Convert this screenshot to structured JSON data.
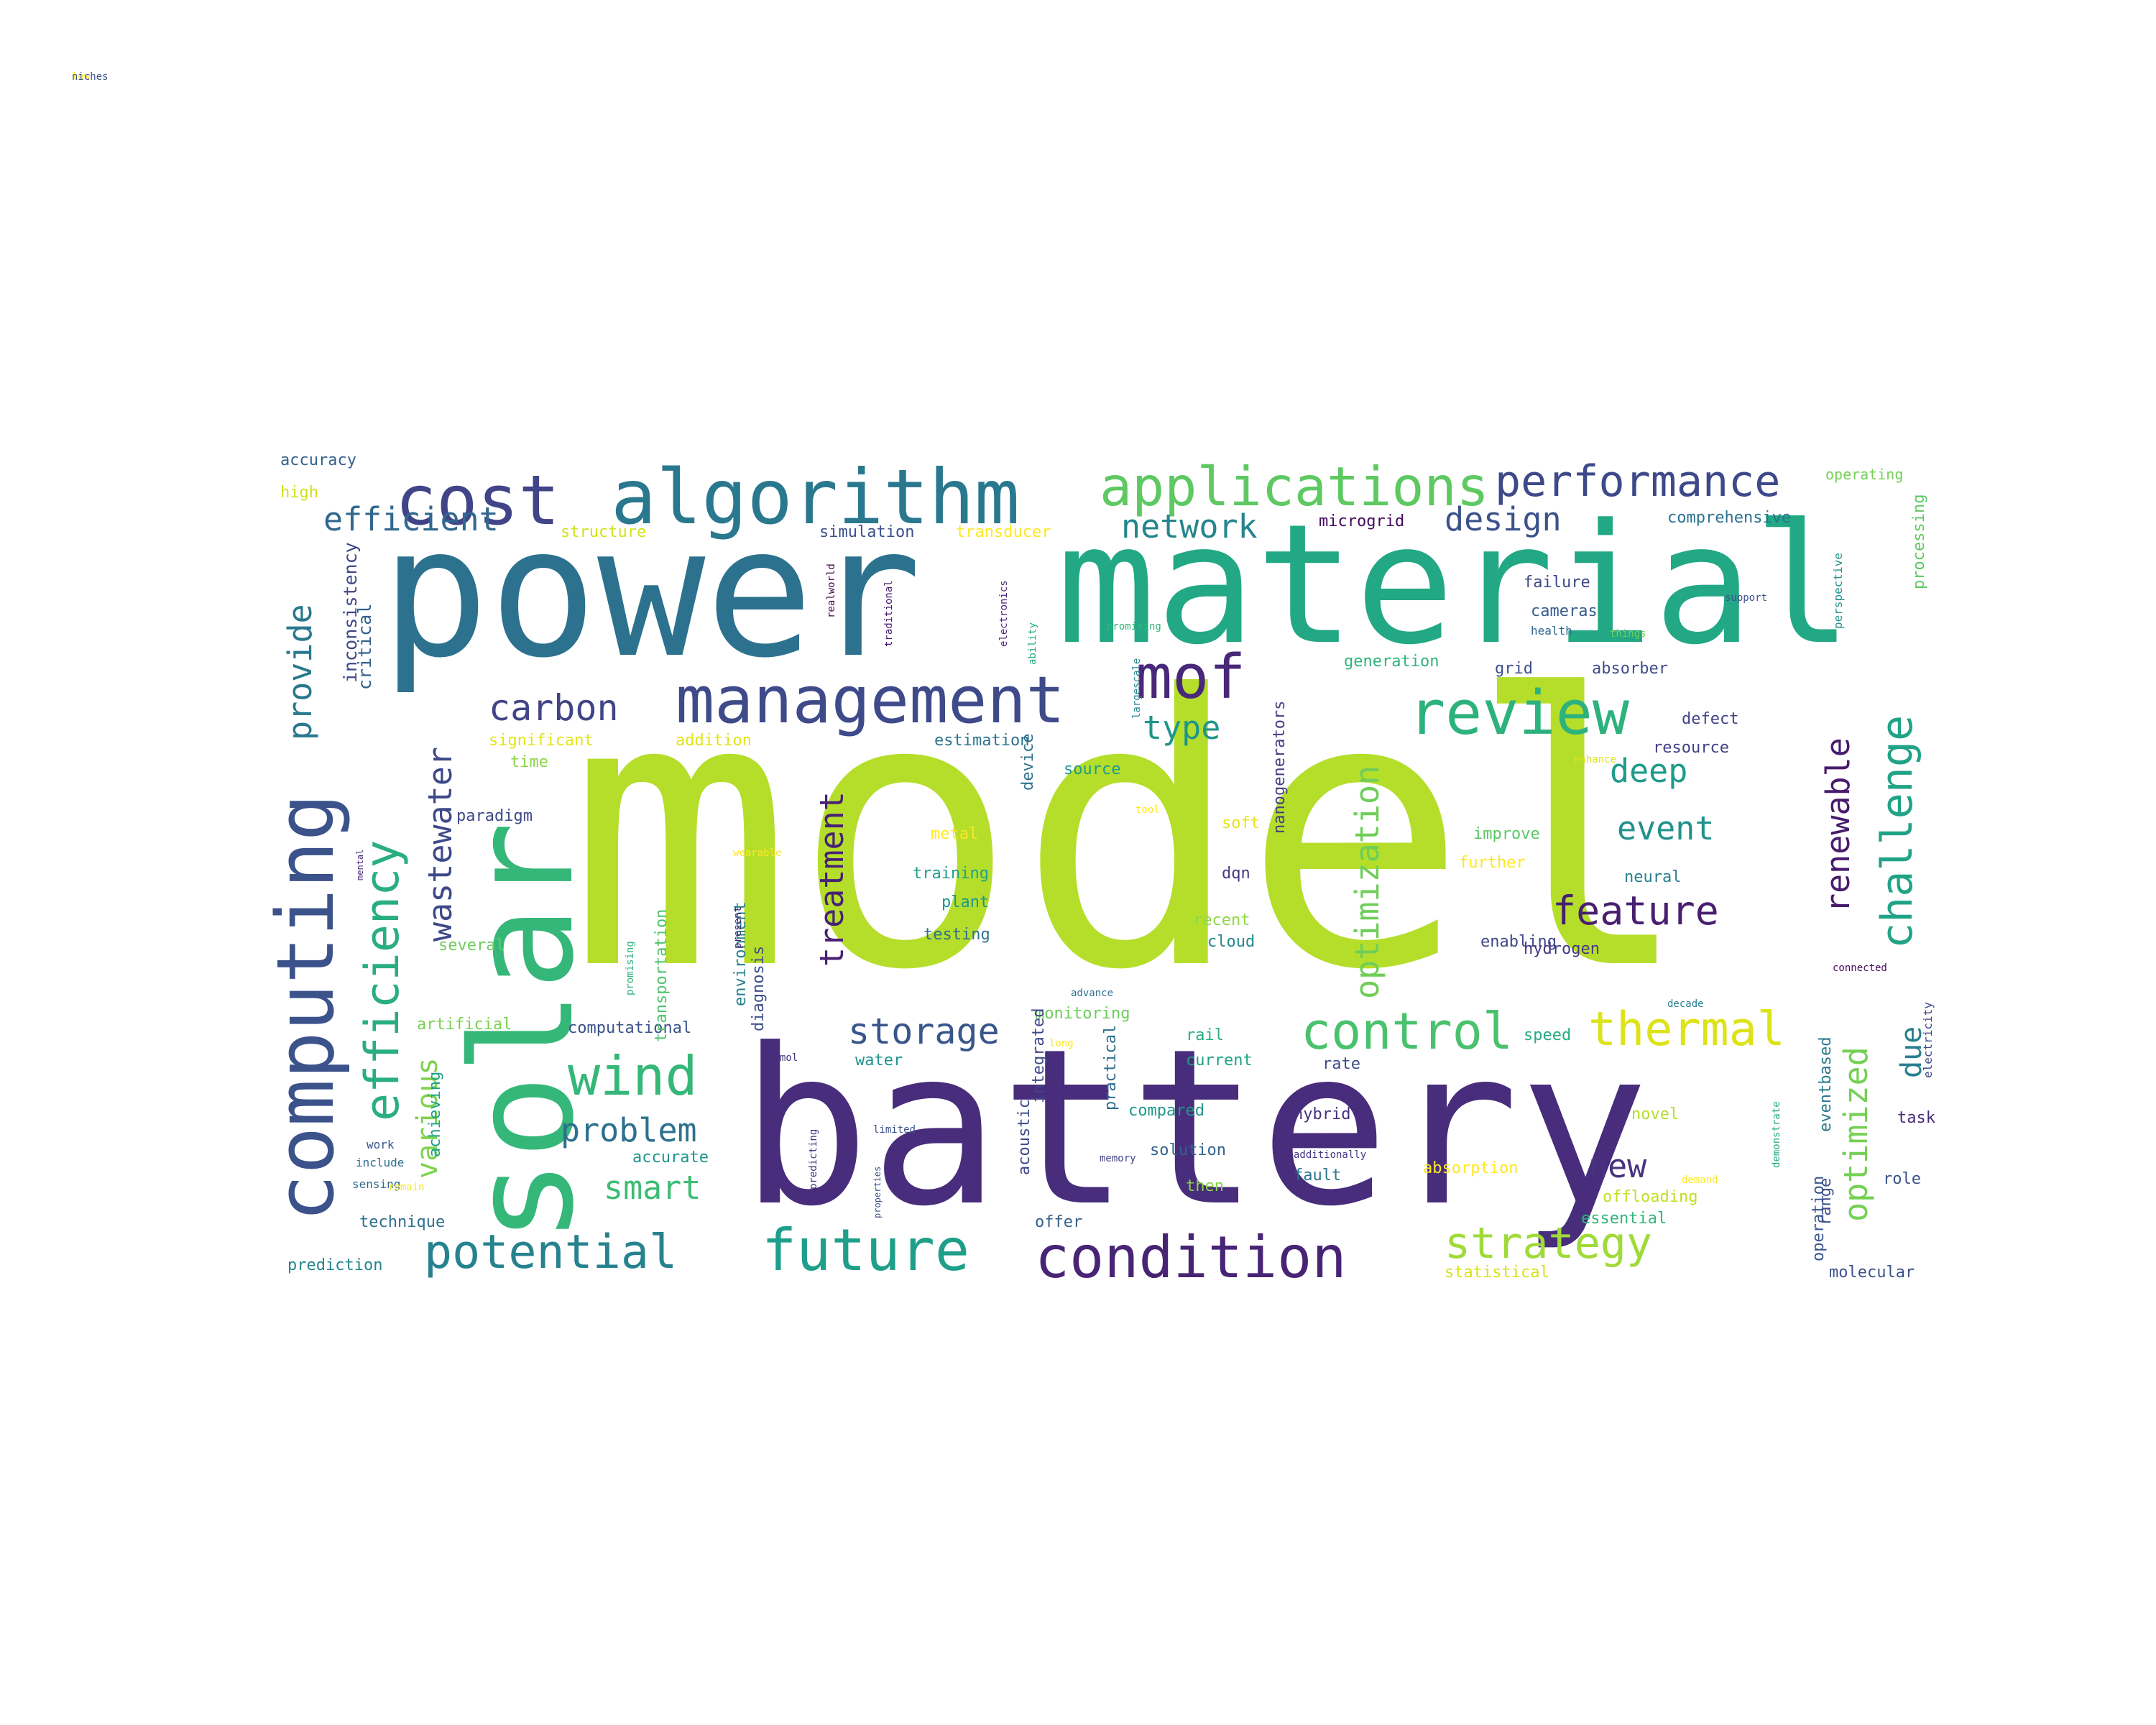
{
  "words": [
    {
      "text": "model",
      "color": "#b5de2b",
      "rot": 0
    },
    {
      "text": "battery",
      "color": "#472d7b",
      "rot": 0
    },
    {
      "text": "power",
      "color": "#2c728e",
      "rot": 0
    },
    {
      "text": "material",
      "color": "#22a884",
      "rot": 0
    },
    {
      "text": "solar",
      "color": "#35b779",
      "rot": -90
    },
    {
      "text": "computing",
      "color": "#3b528b",
      "rot": -90
    },
    {
      "text": "algorithm",
      "color": "#2a788e",
      "rot": 0
    },
    {
      "text": "cost",
      "color": "#414487",
      "rot": 0
    },
    {
      "text": "applications",
      "color": "#5ec962",
      "rot": 0
    },
    {
      "text": "performance",
      "color": "#3e4989",
      "rot": 0
    },
    {
      "text": "management",
      "color": "#3e4a89",
      "rot": 0
    },
    {
      "text": "mof",
      "color": "#482878",
      "rot": 0
    },
    {
      "text": "review",
      "color": "#2db27d",
      "rot": 0
    },
    {
      "text": "condition",
      "color": "#482475",
      "rot": 0
    },
    {
      "text": "future",
      "color": "#1f9e89",
      "rot": 0
    },
    {
      "text": "potential",
      "color": "#26828e",
      "rot": 0
    },
    {
      "text": "control",
      "color": "#4ac16d",
      "rot": 0
    },
    {
      "text": "thermal",
      "color": "#dde318",
      "rot": 0
    },
    {
      "text": "wind",
      "color": "#35b779",
      "rot": 0
    },
    {
      "text": "efficiency",
      "color": "#29af7f",
      "rot": -90
    },
    {
      "text": "efficient",
      "color": "#31688e",
      "rot": 0
    },
    {
      "text": "provide",
      "color": "#2a788e",
      "rot": -90
    },
    {
      "text": "carbon",
      "color": "#414487",
      "rot": 0
    },
    {
      "text": "challenge",
      "color": "#20a386",
      "rot": -90
    },
    {
      "text": "strategy",
      "color": "#a0da39",
      "rot": 0
    },
    {
      "text": "feature",
      "color": "#481f70",
      "rot": 0
    },
    {
      "text": "storage",
      "color": "#39568c",
      "rot": 0
    },
    {
      "text": "design",
      "color": "#3b528b",
      "rot": 0
    },
    {
      "text": "network",
      "color": "#25858e",
      "rot": 0
    },
    {
      "text": "wastewater",
      "color": "#3e4989",
      "rot": -90
    },
    {
      "text": "optimization",
      "color": "#6ece58",
      "rot": -90
    },
    {
      "text": "treatment",
      "color": "#482173",
      "rot": -90
    },
    {
      "text": "renewable",
      "color": "#481b6d",
      "rot": -90
    },
    {
      "text": "optimized",
      "color": "#75d054",
      "rot": -90
    },
    {
      "text": "deep",
      "color": "#1e9b8a",
      "rot": 0
    },
    {
      "text": "event",
      "color": "#21918c",
      "rot": 0
    },
    {
      "text": "type",
      "color": "#1f968b",
      "rot": 0
    },
    {
      "text": "problem",
      "color": "#2d708e",
      "rot": 0
    },
    {
      "text": "smart",
      "color": "#3dbc74",
      "rot": 0
    },
    {
      "text": "new",
      "color": "#46327e",
      "rot": 0
    },
    {
      "text": "due",
      "color": "#277f8e",
      "rot": -90
    },
    {
      "text": "various",
      "color": "#7fd34e",
      "rot": -90
    },
    {
      "text": "inconsistency",
      "color": "#3f4788",
      "rot": -90
    },
    {
      "text": "critical",
      "color": "#33638d",
      "rot": -90
    },
    {
      "text": "accuracy",
      "color": "#34618d",
      "rot": 0
    },
    {
      "text": "high",
      "color": "#d0e11c",
      "rot": 0
    },
    {
      "text": "structure",
      "color": "#d2e21b",
      "rot": 0
    },
    {
      "text": "simulation",
      "color": "#3c508b",
      "rot": 0
    },
    {
      "text": "transducer",
      "color": "#fde725",
      "rot": 0
    },
    {
      "text": "microgrid",
      "color": "#46085c",
      "rot": 0
    },
    {
      "text": "comprehensive",
      "color": "#2c728e",
      "rot": 0
    },
    {
      "text": "operating",
      "color": "#73d056",
      "rot": 0
    },
    {
      "text": "failure",
      "color": "#3f4889",
      "rot": 0
    },
    {
      "text": "cameras",
      "color": "#365c8d",
      "rot": 0
    },
    {
      "text": "health",
      "color": "#31678e",
      "rot": 0
    },
    {
      "text": "grid",
      "color": "#3b518b",
      "rot": 0
    },
    {
      "text": "absorber",
      "color": "#3e4c8a",
      "rot": 0
    },
    {
      "text": "generation",
      "color": "#2fb47c",
      "rot": 0
    },
    {
      "text": "significant",
      "color": "#e5e419",
      "rot": 0
    },
    {
      "text": "addition",
      "color": "#e2e418",
      "rot": 0
    },
    {
      "text": "estimation",
      "color": "#2c738e",
      "rot": 0
    },
    {
      "text": "defect",
      "color": "#424186",
      "rot": 0
    },
    {
      "text": "resource",
      "color": "#433e85",
      "rot": 0
    },
    {
      "text": "time",
      "color": "#8bd646",
      "rot": 0
    },
    {
      "text": "source",
      "color": "#1f998a",
      "rot": 0
    },
    {
      "text": "paradigm",
      "color": "#3f4889",
      "rot": 0
    },
    {
      "text": "metal",
      "color": "#fde725",
      "rot": 0
    },
    {
      "text": "soft",
      "color": "#e7e419",
      "rot": 0
    },
    {
      "text": "improve",
      "color": "#5ac864",
      "rot": 0
    },
    {
      "text": "training",
      "color": "#1fa187",
      "rot": 0
    },
    {
      "text": "plant",
      "color": "#1f968b",
      "rot": 0
    },
    {
      "text": "testing",
      "color": "#2c718e",
      "rot": 0
    },
    {
      "text": "dqn",
      "color": "#443983",
      "rot": 0
    },
    {
      "text": "recent",
      "color": "#90d743",
      "rot": 0
    },
    {
      "text": "cloud",
      "color": "#23888e",
      "rot": 0
    },
    {
      "text": "neural",
      "color": "#27808e",
      "rot": 0
    },
    {
      "text": "further",
      "color": "#fde725",
      "rot": 0
    },
    {
      "text": "enabling",
      "color": "#3f4889",
      "rot": 0
    },
    {
      "text": "hydrogen",
      "color": "#453882",
      "rot": 0
    },
    {
      "text": "several",
      "color": "#6ccd5a",
      "rot": 0
    },
    {
      "text": "artificial",
      "color": "#7ad151",
      "rot": 0
    },
    {
      "text": "computational",
      "color": "#3b528b",
      "rot": 0
    },
    {
      "text": "monitoring",
      "color": "#6ccd5a",
      "rot": 0
    },
    {
      "text": "rate",
      "color": "#3d4d8a",
      "rot": 0
    },
    {
      "text": "water",
      "color": "#20928c",
      "rot": 0
    },
    {
      "text": "rail",
      "color": "#27ad81",
      "rot": 0
    },
    {
      "text": "current",
      "color": "#1fa188",
      "rot": 0
    },
    {
      "text": "speed",
      "color": "#25ab82",
      "rot": 0
    },
    {
      "text": "compared",
      "color": "#1f988b",
      "rot": 0
    },
    {
      "text": "hybrid",
      "color": "#46307e",
      "rot": 0
    },
    {
      "text": "solution",
      "color": "#33628d",
      "rot": 0
    },
    {
      "text": "fault",
      "color": "#2a768e",
      "rot": 0
    },
    {
      "text": "then",
      "color": "#86d549",
      "rot": 0
    },
    {
      "text": "novel",
      "color": "#b8de29",
      "rot": 0
    },
    {
      "text": "absorption",
      "color": "#fde725",
      "rot": 0
    },
    {
      "text": "offloading",
      "color": "#c2df23",
      "rot": 0
    },
    {
      "text": "essential",
      "color": "#31b57b",
      "rot": 0
    },
    {
      "text": "offer",
      "color": "#35608d",
      "rot": 0
    },
    {
      "text": "task",
      "color": "#472a7a",
      "rot": 0
    },
    {
      "text": "role",
      "color": "#3b528b",
      "rot": 0
    },
    {
      "text": "work",
      "color": "#3a548c",
      "rot": 0
    },
    {
      "text": "include",
      "color": "#2e6e8e",
      "rot": 0
    },
    {
      "text": "sensing",
      "color": "#306a8e",
      "rot": 0
    },
    {
      "text": "technique",
      "color": "#2d708e",
      "rot": 0
    },
    {
      "text": "prediction",
      "color": "#25858e",
      "rot": 0
    },
    {
      "text": "accurate",
      "color": "#1f958b",
      "rot": 0
    },
    {
      "text": "statistical",
      "color": "#d8e219",
      "rot": 0
    },
    {
      "text": "molecular",
      "color": "#3b528b",
      "rot": 0
    },
    {
      "text": "operation",
      "color": "#39568c",
      "rot": -90
    },
    {
      "text": "range",
      "color": "#3c4f8a",
      "rot": -90
    },
    {
      "text": "eventbased",
      "color": "#2a788e",
      "rot": -90
    },
    {
      "text": "processing",
      "color": "#5ec962",
      "rot": -90
    },
    {
      "text": "electricity",
      "color": "#3e4a89",
      "rot": -90
    },
    {
      "text": "perspective",
      "color": "#21918c",
      "rot": -90
    },
    {
      "text": "achieving",
      "color": "#1fa088",
      "rot": -90
    },
    {
      "text": "acoustic",
      "color": "#3e4989",
      "rot": -90
    },
    {
      "text": "integrated",
      "color": "#3f4788",
      "rot": -90
    },
    {
      "text": "practical",
      "color": "#2e6f8e",
      "rot": -90
    },
    {
      "text": "environment",
      "color": "#26818e",
      "rot": -90
    },
    {
      "text": "diagnosis",
      "color": "#3d4e8a",
      "rot": -90
    },
    {
      "text": "transportation",
      "color": "#4ec36b",
      "rot": -90
    },
    {
      "text": "nanogenerators",
      "color": "#433e85",
      "rot": -90
    },
    {
      "text": "device",
      "color": "#2d708e",
      "rot": -90
    },
    {
      "text": "largescale",
      "color": "#24878e",
      "rot": -90
    },
    {
      "text": "electronics",
      "color": "#482677",
      "rot": -90
    },
    {
      "text": "traditional",
      "color": "#481c6e",
      "rot": -90
    },
    {
      "text": "promising",
      "color": "#2fb47c",
      "rot": -90
    },
    {
      "text": "predicting",
      "color": "#472a7a",
      "rot": -90
    },
    {
      "text": "properties",
      "color": "#3c508b",
      "rot": -90
    },
    {
      "text": "demonstrate",
      "color": "#22a785",
      "rot": -90
    },
    {
      "text": "present",
      "color": "#482475",
      "rot": -90
    },
    {
      "text": "mental",
      "color": "#472c7a",
      "rot": -90
    },
    {
      "text": "realworld",
      "color": "#440154",
      "rot": -90
    },
    {
      "text": "ability",
      "color": "#27ad81",
      "rot": -90
    },
    {
      "text": "promising",
      "color": "#31b57b",
      "rot": 0
    },
    {
      "text": "support",
      "color": "#3b528b",
      "rot": 0
    },
    {
      "text": "things",
      "color": "#6ece58",
      "rot": 0
    },
    {
      "text": "enhance",
      "color": "#dde318",
      "rot": 0
    },
    {
      "text": "tool",
      "color": "#fde725",
      "rot": 0
    },
    {
      "text": "wearable",
      "color": "#fde725",
      "rot": 0
    },
    {
      "text": "advance",
      "color": "#2c728e",
      "rot": 0
    },
    {
      "text": "mol",
      "color": "#46337f",
      "rot": 0
    },
    {
      "text": "limited",
      "color": "#3b528b",
      "rot": 0
    },
    {
      "text": "memory",
      "color": "#414487",
      "rot": 0
    },
    {
      "text": "additionally",
      "color": "#443983",
      "rot": 0
    },
    {
      "text": "decade",
      "color": "#26828e",
      "rot": 0
    },
    {
      "text": "connected",
      "color": "#46075a",
      "rot": 0
    },
    {
      "text": "demand",
      "color": "#fde725",
      "rot": 0
    },
    {
      "text": "remain",
      "color": "#fde725",
      "rot": 0
    },
    {
      "text": "long",
      "color": "#fde725",
      "rot": 0
    },
    {
      "text": "low",
      "color": "#fde725",
      "rot": 0
    },
    {
      "text": "niches",
      "color": "#3b528b",
      "rot": 0
    }
  ]
}
